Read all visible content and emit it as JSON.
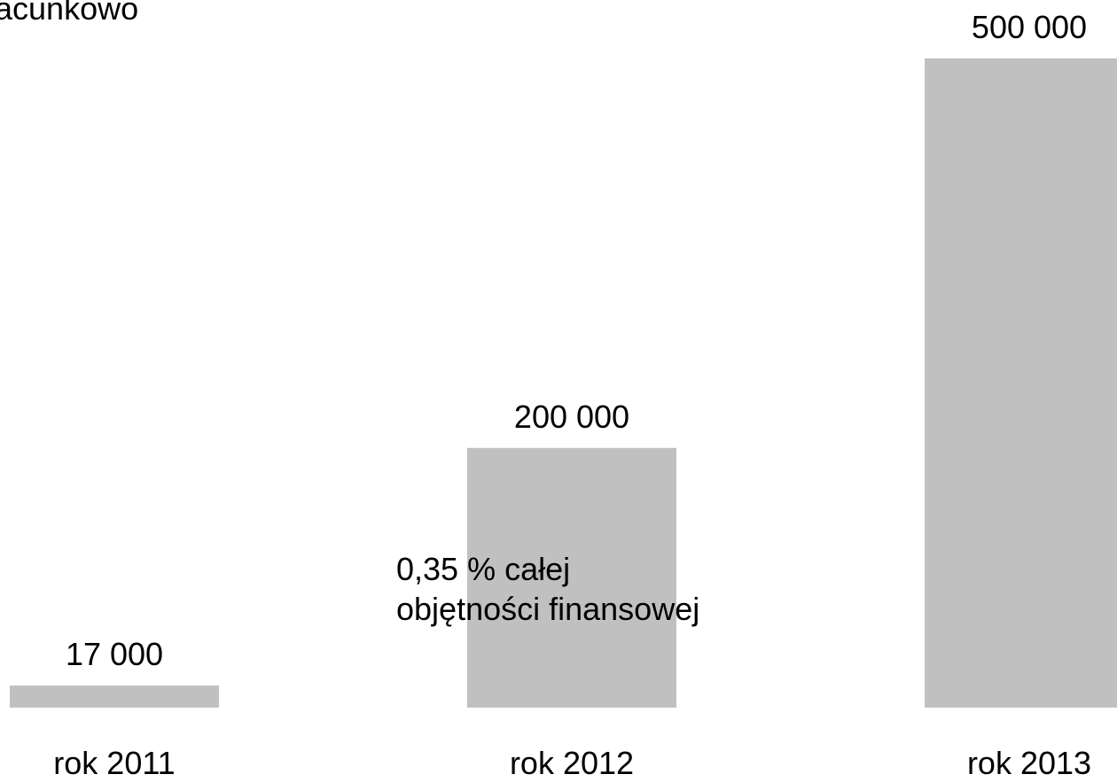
{
  "top_text": "acunkowo",
  "note": {
    "line1": "0,35 % całej",
    "line2": "objętności finansowej"
  },
  "colors": {
    "bar": "#c0c0c0",
    "text": "#000000",
    "background": "#ffffff"
  },
  "chart_data": {
    "type": "bar",
    "categories": [
      "rok 2011",
      "rok 2012",
      "rok 2013"
    ],
    "values": [
      17000,
      200000,
      500000
    ],
    "data_labels": [
      "17 000",
      "200 000",
      "500 000"
    ],
    "title": "",
    "xlabel": "",
    "ylabel": "",
    "ylim": [
      0,
      500000
    ],
    "grid": false,
    "axes_visible": false
  }
}
